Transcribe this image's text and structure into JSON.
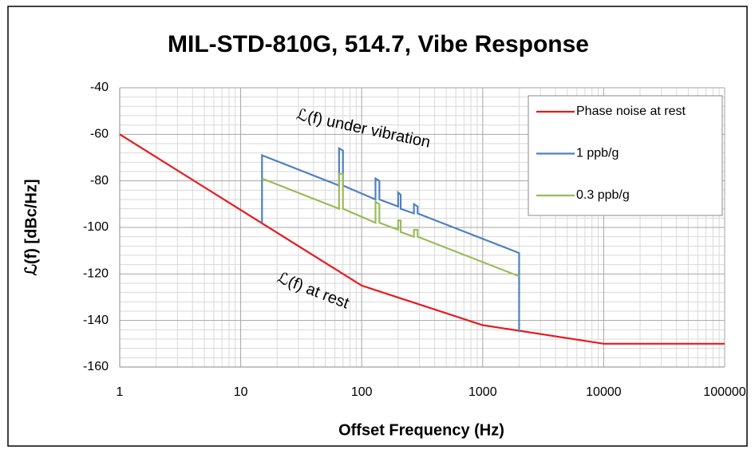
{
  "chart_data": {
    "type": "line",
    "title": "MIL-STD-810G, 514.7, Vibe Response",
    "x_label": "Offset Frequency (Hz)",
    "y_label": "ℒ(f) [dBc/Hz]",
    "annotations": [
      "ℒ(f) under vibration",
      "ℒ(f) at rest"
    ],
    "x_log": true,
    "xlim": [
      1,
      100000
    ],
    "xticks": [
      1,
      10,
      100,
      1000,
      10000,
      100000
    ],
    "ylim": [
      -160,
      -40
    ],
    "yticks": [
      -160,
      -140,
      -120,
      -100,
      -80,
      -60,
      -40
    ],
    "grid": true,
    "minor_grid": true,
    "legend": "upper right",
    "series": [
      {
        "name": "Phase noise at rest",
        "color": "#e8191f",
        "x": [
          1,
          100,
          1000,
          10000,
          100000
        ],
        "values": [
          -60,
          -125,
          -142,
          -150,
          -150
        ]
      },
      {
        "name": "1 ppb/g",
        "color": "#4f81bd",
        "x": [
          15,
          15,
          65,
          65,
          70,
          70,
          130,
          130,
          140,
          140,
          200,
          200,
          210,
          210,
          270,
          270,
          290,
          290,
          2000,
          2000
        ],
        "values": [
          -98,
          -69,
          -82,
          -66,
          -67,
          -82,
          -88,
          -79,
          -80,
          -88,
          -91,
          -85,
          -86,
          -92,
          -94,
          -90,
          -91,
          -94,
          -111,
          -145
        ]
      },
      {
        "name": "0.3 ppb/g",
        "color": "#9bbb59",
        "x": [
          15,
          65,
          65,
          70,
          70,
          130,
          130,
          140,
          140,
          200,
          200,
          210,
          210,
          270,
          270,
          290,
          290,
          2000
        ],
        "values": [
          -79,
          -92,
          -77,
          -77,
          -92,
          -98,
          -89,
          -90,
          -98,
          -101,
          -97,
          -97,
          -102,
          -104,
          -101,
          -101,
          -104,
          -121
        ]
      }
    ]
  }
}
